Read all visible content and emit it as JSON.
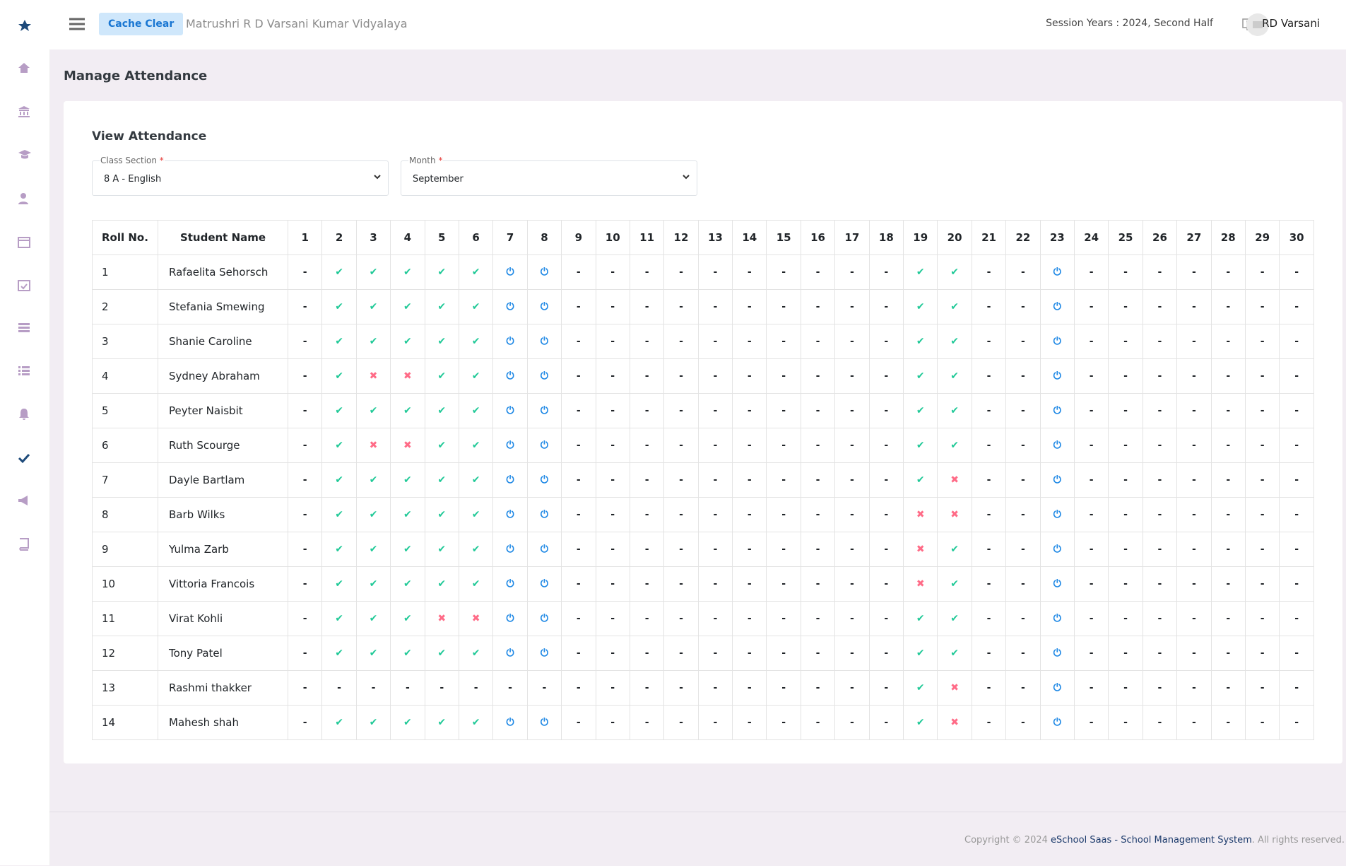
{
  "header": {
    "button": "Cache Clear",
    "school": "Matrushri R D Varsani Kumar Vidyalaya",
    "session": "Session Years : 2024, Second Half",
    "user": "RD Varsani"
  },
  "page_title": "Manage Attendance",
  "card": {
    "title": "View Attendance",
    "required_mark": "*",
    "fields": [
      {
        "label": "Class Section",
        "value": "8 A - English"
      },
      {
        "label": "Month",
        "value": "September"
      }
    ]
  },
  "symbol_colors": {
    "✔": "#20c997",
    "✖": "#ff6b87",
    "⏻": "#1e88e5",
    "-": "#212529"
  },
  "table": {
    "columns": [
      "Roll No.",
      "Student Name",
      1,
      2,
      3,
      4,
      5,
      6,
      7,
      8,
      9,
      10,
      11,
      12,
      13,
      14,
      15,
      16,
      17,
      18,
      19,
      20,
      21,
      22,
      23,
      24,
      25,
      26,
      27,
      28,
      29,
      30
    ],
    "rows": [
      [
        1,
        "Rafaelita Sehorsch",
        "-",
        "✔",
        "✔",
        "✔",
        "✔",
        "✔",
        "⏻",
        "⏻",
        "-",
        "-",
        "-",
        "-",
        "-",
        "-",
        "-",
        "-",
        "-",
        "-",
        "✔",
        "✔",
        "-",
        "-",
        "⏻",
        "-",
        "-",
        "-",
        "-",
        "-",
        "-",
        "-"
      ],
      [
        2,
        "Stefania Smewing",
        "-",
        "✔",
        "✔",
        "✔",
        "✔",
        "✔",
        "⏻",
        "⏻",
        "-",
        "-",
        "-",
        "-",
        "-",
        "-",
        "-",
        "-",
        "-",
        "-",
        "✔",
        "✔",
        "-",
        "-",
        "⏻",
        "-",
        "-",
        "-",
        "-",
        "-",
        "-",
        "-"
      ],
      [
        3,
        "Shanie Caroline",
        "-",
        "✔",
        "✔",
        "✔",
        "✔",
        "✔",
        "⏻",
        "⏻",
        "-",
        "-",
        "-",
        "-",
        "-",
        "-",
        "-",
        "-",
        "-",
        "-",
        "✔",
        "✔",
        "-",
        "-",
        "⏻",
        "-",
        "-",
        "-",
        "-",
        "-",
        "-",
        "-"
      ],
      [
        4,
        "Sydney Abraham",
        "-",
        "✔",
        "✖",
        "✖",
        "✔",
        "✔",
        "⏻",
        "⏻",
        "-",
        "-",
        "-",
        "-",
        "-",
        "-",
        "-",
        "-",
        "-",
        "-",
        "✔",
        "✔",
        "-",
        "-",
        "⏻",
        "-",
        "-",
        "-",
        "-",
        "-",
        "-",
        "-"
      ],
      [
        5,
        "Peyter Naisbit",
        "-",
        "✔",
        "✔",
        "✔",
        "✔",
        "✔",
        "⏻",
        "⏻",
        "-",
        "-",
        "-",
        "-",
        "-",
        "-",
        "-",
        "-",
        "-",
        "-",
        "✔",
        "✔",
        "-",
        "-",
        "⏻",
        "-",
        "-",
        "-",
        "-",
        "-",
        "-",
        "-"
      ],
      [
        6,
        "Ruth Scourge",
        "-",
        "✔",
        "✖",
        "✖",
        "✔",
        "✔",
        "⏻",
        "⏻",
        "-",
        "-",
        "-",
        "-",
        "-",
        "-",
        "-",
        "-",
        "-",
        "-",
        "✔",
        "✔",
        "-",
        "-",
        "⏻",
        "-",
        "-",
        "-",
        "-",
        "-",
        "-",
        "-"
      ],
      [
        7,
        "Dayle Bartlam",
        "-",
        "✔",
        "✔",
        "✔",
        "✔",
        "✔",
        "⏻",
        "⏻",
        "-",
        "-",
        "-",
        "-",
        "-",
        "-",
        "-",
        "-",
        "-",
        "-",
        "✔",
        "✖",
        "-",
        "-",
        "⏻",
        "-",
        "-",
        "-",
        "-",
        "-",
        "-",
        "-"
      ],
      [
        8,
        "Barb Wilks",
        "-",
        "✔",
        "✔",
        "✔",
        "✔",
        "✔",
        "⏻",
        "⏻",
        "-",
        "-",
        "-",
        "-",
        "-",
        "-",
        "-",
        "-",
        "-",
        "-",
        "✖",
        "✖",
        "-",
        "-",
        "⏻",
        "-",
        "-",
        "-",
        "-",
        "-",
        "-",
        "-"
      ],
      [
        9,
        "Yulma Zarb",
        "-",
        "✔",
        "✔",
        "✔",
        "✔",
        "✔",
        "⏻",
        "⏻",
        "-",
        "-",
        "-",
        "-",
        "-",
        "-",
        "-",
        "-",
        "-",
        "-",
        "✖",
        "✔",
        "-",
        "-",
        "⏻",
        "-",
        "-",
        "-",
        "-",
        "-",
        "-",
        "-"
      ],
      [
        10,
        "Vittoria Francois",
        "-",
        "✔",
        "✔",
        "✔",
        "✔",
        "✔",
        "⏻",
        "⏻",
        "-",
        "-",
        "-",
        "-",
        "-",
        "-",
        "-",
        "-",
        "-",
        "-",
        "✖",
        "✔",
        "-",
        "-",
        "⏻",
        "-",
        "-",
        "-",
        "-",
        "-",
        "-",
        "-"
      ],
      [
        11,
        "Virat Kohli",
        "-",
        "✔",
        "✔",
        "✔",
        "✖",
        "✖",
        "⏻",
        "⏻",
        "-",
        "-",
        "-",
        "-",
        "-",
        "-",
        "-",
        "-",
        "-",
        "-",
        "✔",
        "✔",
        "-",
        "-",
        "⏻",
        "-",
        "-",
        "-",
        "-",
        "-",
        "-",
        "-"
      ],
      [
        12,
        "Tony Patel",
        "-",
        "✔",
        "✔",
        "✔",
        "✔",
        "✔",
        "⏻",
        "⏻",
        "-",
        "-",
        "-",
        "-",
        "-",
        "-",
        "-",
        "-",
        "-",
        "-",
        "✔",
        "✔",
        "-",
        "-",
        "⏻",
        "-",
        "-",
        "-",
        "-",
        "-",
        "-",
        "-"
      ],
      [
        13,
        "Rashmi thakker",
        "-",
        "-",
        "-",
        "-",
        "-",
        "-",
        "-",
        "-",
        "-",
        "-",
        "-",
        "-",
        "-",
        "-",
        "-",
        "-",
        "-",
        "-",
        "✔",
        "✖",
        "-",
        "-",
        "⏻",
        "-",
        "-",
        "-",
        "-",
        "-",
        "-",
        "-"
      ],
      [
        14,
        "Mahesh shah",
        "-",
        "✔",
        "✔",
        "✔",
        "✔",
        "✔",
        "⏻",
        "⏻",
        "-",
        "-",
        "-",
        "-",
        "-",
        "-",
        "-",
        "-",
        "-",
        "-",
        "✔",
        "✖",
        "-",
        "-",
        "⏻",
        "-",
        "-",
        "-",
        "-",
        "-",
        "-",
        "-"
      ]
    ]
  },
  "footer": {
    "prefix": "Copyright © 2024",
    "link": "eSchool Saas - School Management System",
    "suffix": ". All rights reserved."
  }
}
